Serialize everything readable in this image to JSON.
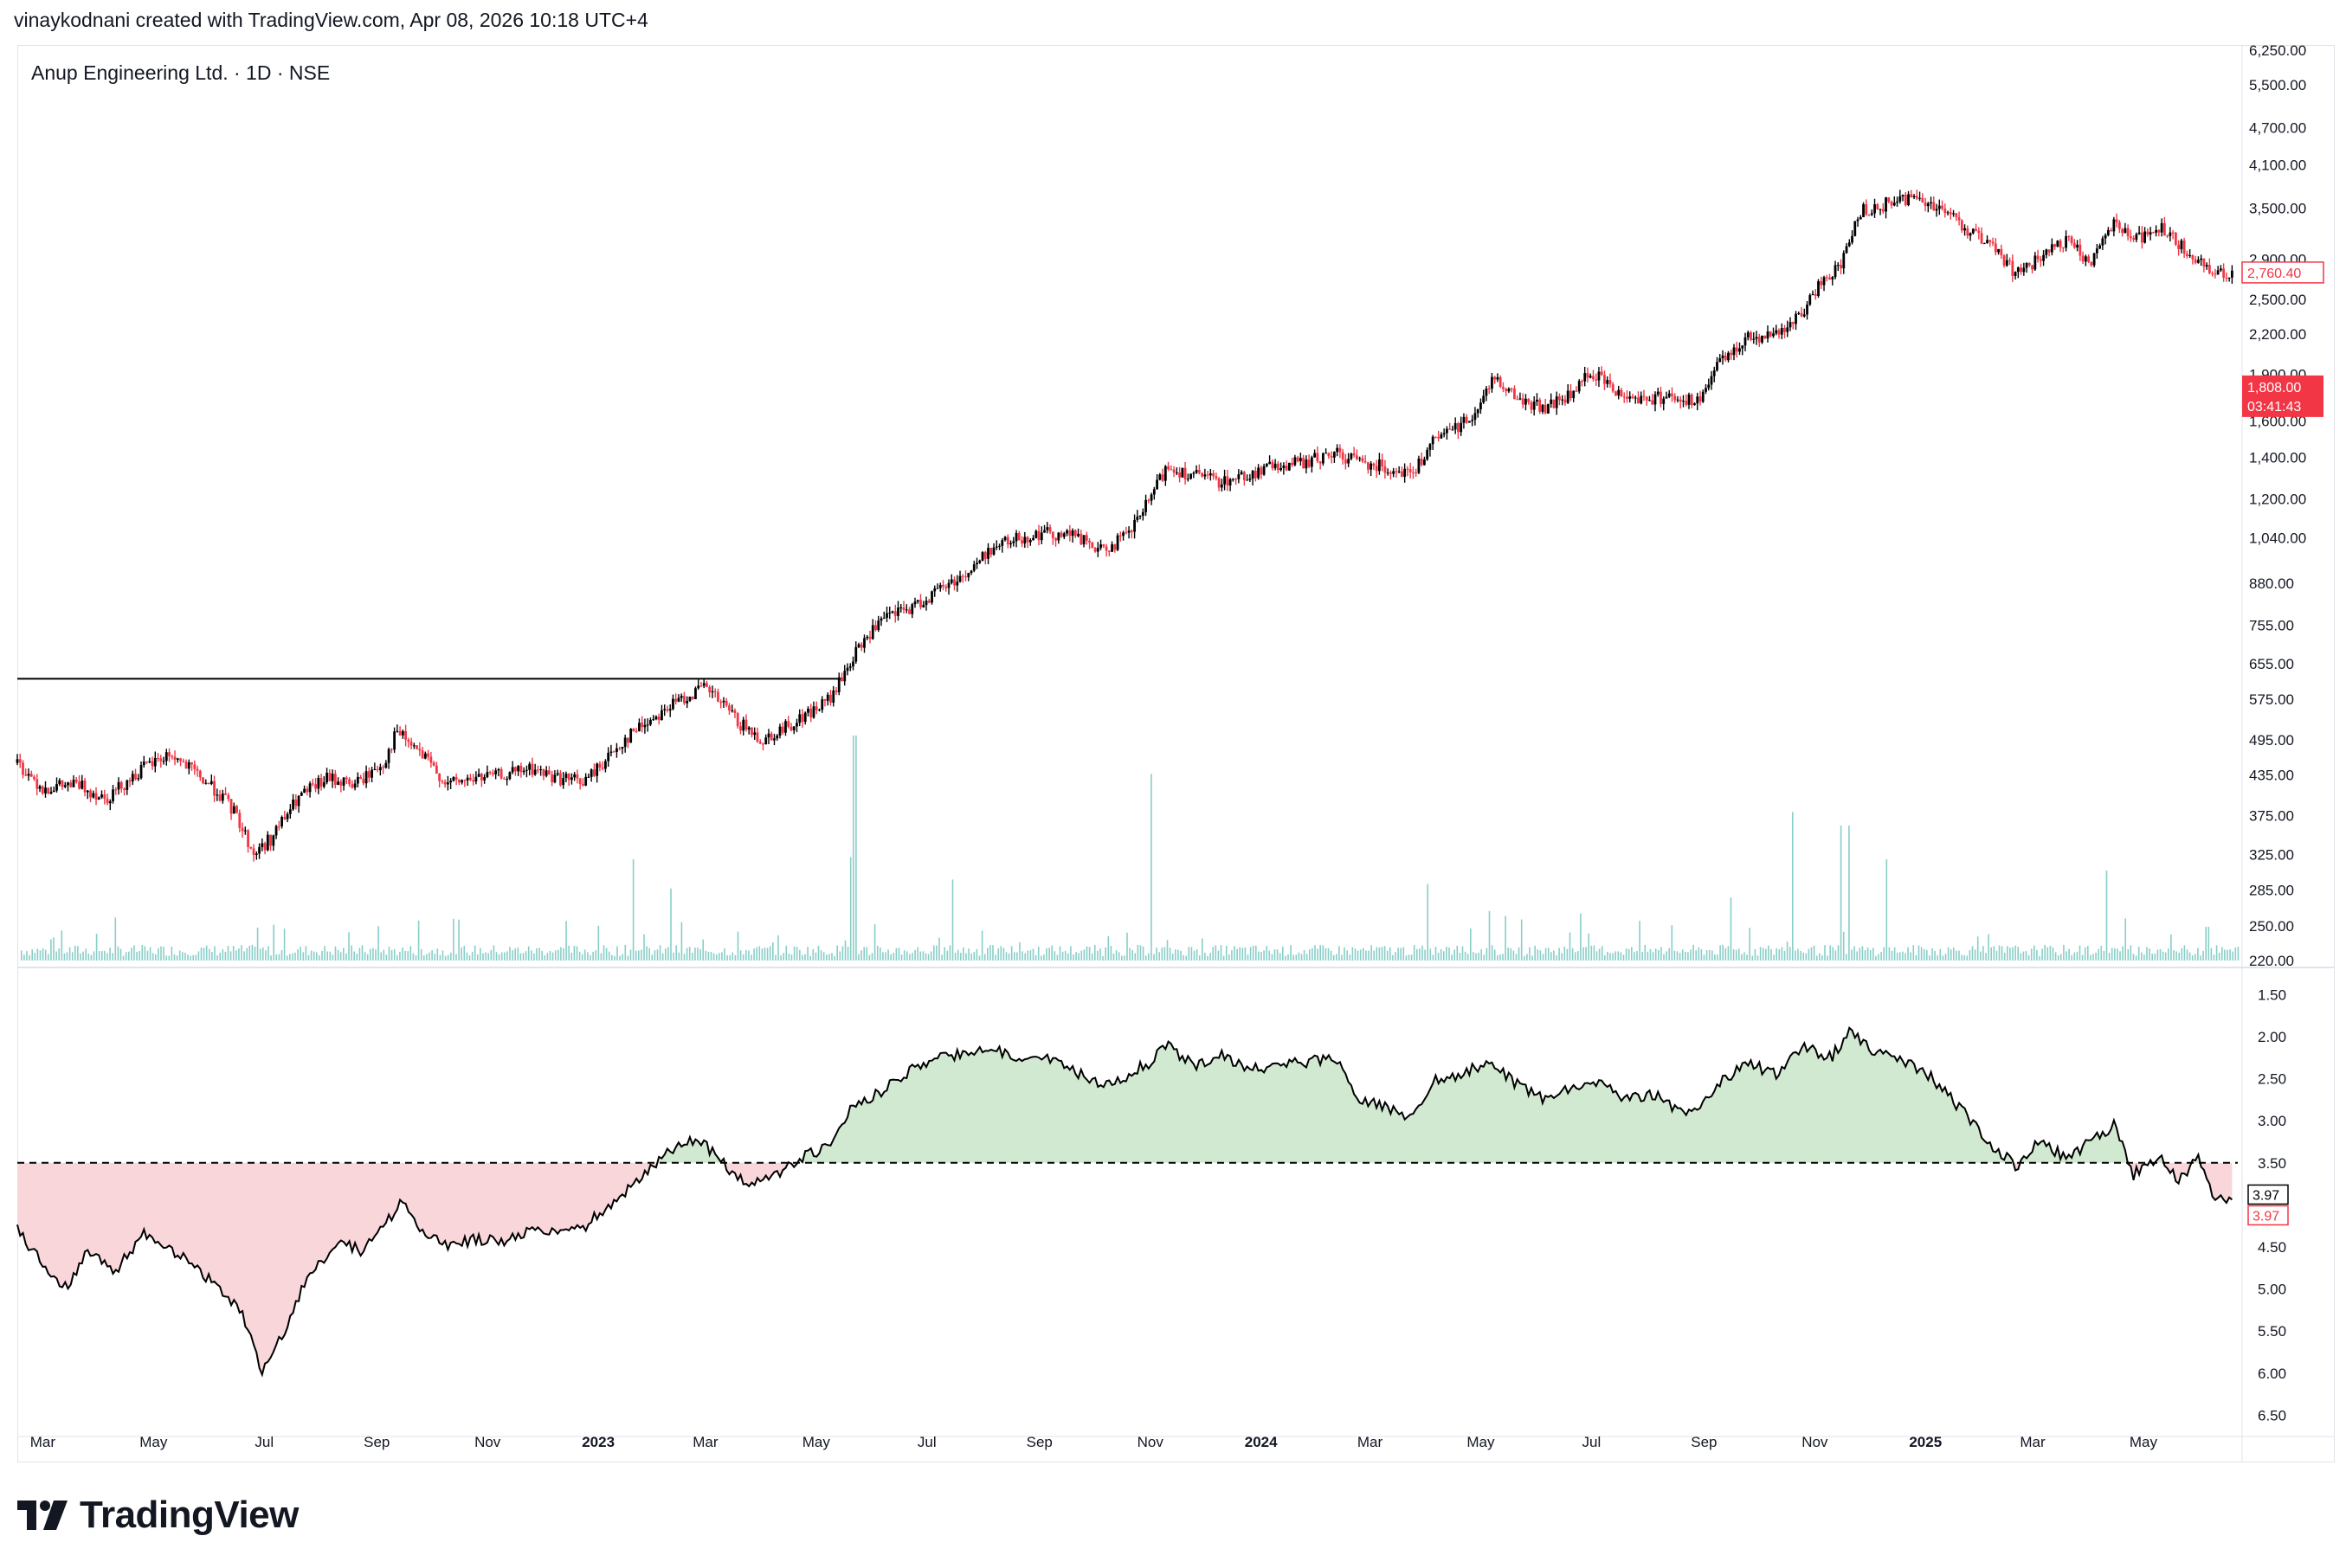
{
  "header": {
    "text": "vinaykodnani created with TradingView.com, Apr 08, 2026 10:18 UTC+4"
  },
  "brand": {
    "name": "TradingView",
    "icon": "tradingview-logo-icon"
  },
  "chart_data": [
    {
      "type": "candlestick",
      "title": "Anup Engineering Ltd. · 1D · NSE",
      "scale": "log",
      "ylim": [
        220,
        6250
      ],
      "y_ticks": [
        "6,250.00",
        "5,500.00",
        "4,700.00",
        "4,100.00",
        "3,500.00",
        "2,900.00",
        "2,500.00",
        "2,200.00",
        "1,900.00",
        "1,600.00",
        "1,400.00",
        "1,200.00",
        "1,040.00",
        "880.00",
        "755.00",
        "655.00",
        "575.00",
        "495.00",
        "435.00",
        "375.00",
        "325.00",
        "285.00",
        "250.00",
        "220.00"
      ],
      "last_price": "2,760.40",
      "secondary_price": "1,808.00",
      "countdown": "03:41:43",
      "horizontal_line": 620,
      "colors": {
        "up": "#000000",
        "down": "#f23645",
        "volume": "#26a69a"
      },
      "price_path": [
        [
          "2022-02-15",
          455
        ],
        [
          "2022-03-01",
          415
        ],
        [
          "2022-03-20",
          420
        ],
        [
          "2022-04-05",
          400
        ],
        [
          "2022-04-25",
          445
        ],
        [
          "2022-05-10",
          470
        ],
        [
          "2022-05-25",
          435
        ],
        [
          "2022-06-05",
          410
        ],
        [
          "2022-06-15",
          378
        ],
        [
          "2022-06-25",
          325
        ],
        [
          "2022-07-05",
          345
        ],
        [
          "2022-07-20",
          400
        ],
        [
          "2022-08-05",
          430
        ],
        [
          "2022-08-20",
          420
        ],
        [
          "2022-09-05",
          455
        ],
        [
          "2022-09-12",
          510
        ],
        [
          "2022-09-25",
          470
        ],
        [
          "2022-10-10",
          420
        ],
        [
          "2022-10-25",
          430
        ],
        [
          "2022-11-10",
          435
        ],
        [
          "2022-11-25",
          445
        ],
        [
          "2022-12-10",
          430
        ],
        [
          "2022-12-25",
          425
        ],
        [
          "2023-01-05",
          460
        ],
        [
          "2023-01-20",
          510
        ],
        [
          "2023-02-05",
          550
        ],
        [
          "2023-02-20",
          585
        ],
        [
          "2023-03-01",
          600
        ],
        [
          "2023-03-10",
          565
        ],
        [
          "2023-03-20",
          525
        ],
        [
          "2023-04-01",
          495
        ],
        [
          "2023-04-15",
          520
        ],
        [
          "2023-05-01",
          555
        ],
        [
          "2023-05-10",
          580
        ],
        [
          "2023-05-20",
          660
        ],
        [
          "2023-05-30",
          730
        ],
        [
          "2023-06-10",
          780
        ],
        [
          "2023-06-25",
          810
        ],
        [
          "2023-07-10",
          870
        ],
        [
          "2023-07-25",
          920
        ],
        [
          "2023-08-05",
          1000
        ],
        [
          "2023-08-20",
          1040
        ],
        [
          "2023-09-05",
          1060
        ],
        [
          "2023-09-20",
          1050
        ],
        [
          "2023-10-05",
          990
        ],
        [
          "2023-10-20",
          1050
        ],
        [
          "2023-11-01",
          1200
        ],
        [
          "2023-11-10",
          1350
        ],
        [
          "2023-11-25",
          1310
        ],
        [
          "2023-12-10",
          1280
        ],
        [
          "2023-12-25",
          1310
        ],
        [
          "2024-01-10",
          1360
        ],
        [
          "2024-01-25",
          1370
        ],
        [
          "2024-02-10",
          1420
        ],
        [
          "2024-02-25",
          1380
        ],
        [
          "2024-03-10",
          1350
        ],
        [
          "2024-03-25",
          1320
        ],
        [
          "2024-04-05",
          1480
        ],
        [
          "2024-04-20",
          1580
        ],
        [
          "2024-05-01",
          1690
        ],
        [
          "2024-05-08",
          1900
        ],
        [
          "2024-05-20",
          1740
        ],
        [
          "2024-06-05",
          1680
        ],
        [
          "2024-06-20",
          1760
        ],
        [
          "2024-07-01",
          1920
        ],
        [
          "2024-07-15",
          1780
        ],
        [
          "2024-08-01",
          1730
        ],
        [
          "2024-08-15",
          1760
        ],
        [
          "2024-08-28",
          1700
        ],
        [
          "2024-09-10",
          1980
        ],
        [
          "2024-09-25",
          2180
        ],
        [
          "2024-10-10",
          2200
        ],
        [
          "2024-10-25",
          2350
        ],
        [
          "2024-11-05",
          2700
        ],
        [
          "2024-11-15",
          2800
        ],
        [
          "2024-11-25",
          3450
        ],
        [
          "2024-12-10",
          3550
        ],
        [
          "2024-12-25",
          3650
        ],
        [
          "2025-01-10",
          3500
        ],
        [
          "2025-01-20",
          3300
        ],
        [
          "2025-02-05",
          3050
        ],
        [
          "2025-02-20",
          2750
        ],
        [
          "2025-03-05",
          2900
        ],
        [
          "2025-03-20",
          3100
        ],
        [
          "2025-04-01",
          2850
        ],
        [
          "2025-04-15",
          3350
        ],
        [
          "2025-04-25",
          3100
        ],
        [
          "2025-05-10",
          3250
        ],
        [
          "2025-05-25",
          2980
        ],
        [
          "2025-06-05",
          2800
        ],
        [
          "2025-06-20",
          2760
        ]
      ],
      "volume_spikes": [
        [
          "2023-01-20",
          0.45
        ],
        [
          "2023-02-10",
          0.32
        ],
        [
          "2023-05-22",
          1.0
        ],
        [
          "2023-05-20",
          0.46
        ],
        [
          "2023-07-15",
          0.36
        ],
        [
          "2023-11-01",
          0.83
        ],
        [
          "2024-04-01",
          0.34
        ],
        [
          "2024-05-05",
          0.22
        ],
        [
          "2024-06-25",
          0.21
        ],
        [
          "2024-09-15",
          0.28
        ],
        [
          "2024-10-20",
          0.66
        ],
        [
          "2024-11-15",
          0.6
        ],
        [
          "2024-11-20",
          0.6
        ],
        [
          "2024-12-10",
          0.45
        ],
        [
          "2025-04-10",
          0.4
        ],
        [
          "2025-06-05",
          0.15
        ]
      ]
    },
    {
      "type": "line",
      "scale": "inverted",
      "ylim": [
        1.25,
        6.65
      ],
      "y_ticks": [
        "1.50",
        "2.00",
        "2.50",
        "3.00",
        "3.50",
        "4.50",
        "5.00",
        "5.50",
        "6.00",
        "6.50"
      ],
      "reference": 3.5,
      "last_values": [
        "3.97",
        "3.97"
      ],
      "colors": {
        "above": "#d1e9d0",
        "below": "#f8d6da",
        "line": "#000000"
      },
      "path": [
        [
          "2022-02-15",
          4.3
        ],
        [
          "2022-03-01",
          4.7
        ],
        [
          "2022-03-15",
          5.0
        ],
        [
          "2022-03-25",
          4.55
        ],
        [
          "2022-04-10",
          4.8
        ],
        [
          "2022-04-25",
          4.35
        ],
        [
          "2022-05-15",
          4.6
        ],
        [
          "2022-06-05",
          4.95
        ],
        [
          "2022-06-20",
          5.35
        ],
        [
          "2022-06-30",
          6.0
        ],
        [
          "2022-07-10",
          5.6
        ],
        [
          "2022-07-25",
          4.85
        ],
        [
          "2022-08-10",
          4.45
        ],
        [
          "2022-08-25",
          4.55
        ],
        [
          "2022-09-05",
          4.25
        ],
        [
          "2022-09-15",
          3.95
        ],
        [
          "2022-09-25",
          4.3
        ],
        [
          "2022-10-10",
          4.5
        ],
        [
          "2022-10-25",
          4.4
        ],
        [
          "2022-11-10",
          4.45
        ],
        [
          "2022-11-25",
          4.3
        ],
        [
          "2022-12-10",
          4.35
        ],
        [
          "2022-12-25",
          4.25
        ],
        [
          "2023-01-10",
          3.95
        ],
        [
          "2023-01-25",
          3.65
        ],
        [
          "2023-02-10",
          3.35
        ],
        [
          "2023-02-25",
          3.2
        ],
        [
          "2023-03-10",
          3.5
        ],
        [
          "2023-03-25",
          3.75
        ],
        [
          "2023-04-10",
          3.65
        ],
        [
          "2023-04-25",
          3.4
        ],
        [
          "2023-05-10",
          3.3
        ],
        [
          "2023-05-20",
          2.85
        ],
        [
          "2023-05-30",
          2.75
        ],
        [
          "2023-06-15",
          2.5
        ],
        [
          "2023-07-01",
          2.3
        ],
        [
          "2023-07-20",
          2.2
        ],
        [
          "2023-08-05",
          2.1
        ],
        [
          "2023-08-20",
          2.3
        ],
        [
          "2023-09-05",
          2.25
        ],
        [
          "2023-09-20",
          2.4
        ],
        [
          "2023-10-05",
          2.6
        ],
        [
          "2023-10-20",
          2.45
        ],
        [
          "2023-11-01",
          2.3
        ],
        [
          "2023-11-10",
          2.1
        ],
        [
          "2023-11-25",
          2.35
        ],
        [
          "2023-12-10",
          2.2
        ],
        [
          "2023-12-25",
          2.4
        ],
        [
          "2024-01-10",
          2.35
        ],
        [
          "2024-01-25",
          2.3
        ],
        [
          "2024-02-10",
          2.25
        ],
        [
          "2024-02-25",
          2.75
        ],
        [
          "2024-03-10",
          2.85
        ],
        [
          "2024-03-25",
          2.95
        ],
        [
          "2024-04-05",
          2.5
        ],
        [
          "2024-04-20",
          2.45
        ],
        [
          "2024-05-05",
          2.3
        ],
        [
          "2024-05-20",
          2.55
        ],
        [
          "2024-06-05",
          2.75
        ],
        [
          "2024-06-20",
          2.6
        ],
        [
          "2024-07-05",
          2.55
        ],
        [
          "2024-07-20",
          2.75
        ],
        [
          "2024-08-05",
          2.7
        ],
        [
          "2024-08-25",
          2.95
        ],
        [
          "2024-09-10",
          2.55
        ],
        [
          "2024-09-25",
          2.3
        ],
        [
          "2024-10-10",
          2.45
        ],
        [
          "2024-10-25",
          2.1
        ],
        [
          "2024-11-10",
          2.25
        ],
        [
          "2024-11-20",
          1.95
        ],
        [
          "2024-12-05",
          2.2
        ],
        [
          "2024-12-20",
          2.3
        ],
        [
          "2025-01-05",
          2.5
        ],
        [
          "2025-01-20",
          2.85
        ],
        [
          "2025-02-05",
          3.25
        ],
        [
          "2025-02-20",
          3.55
        ],
        [
          "2025-03-05",
          3.25
        ],
        [
          "2025-03-20",
          3.45
        ],
        [
          "2025-04-05",
          3.2
        ],
        [
          "2025-04-15",
          3.05
        ],
        [
          "2025-04-25",
          3.65
        ],
        [
          "2025-05-10",
          3.4
        ],
        [
          "2025-05-20",
          3.7
        ],
        [
          "2025-06-01",
          3.45
        ],
        [
          "2025-06-10",
          3.95
        ],
        [
          "2025-06-20",
          3.97
        ]
      ]
    }
  ],
  "x_axis": {
    "ticks": [
      {
        "label": "Mar",
        "date": "2022-03-01",
        "bold": false
      },
      {
        "label": "May",
        "date": "2022-05-01",
        "bold": false
      },
      {
        "label": "Jul",
        "date": "2022-07-01",
        "bold": false
      },
      {
        "label": "Sep",
        "date": "2022-09-01",
        "bold": false
      },
      {
        "label": "Nov",
        "date": "2022-11-01",
        "bold": false
      },
      {
        "label": "2023",
        "date": "2023-01-01",
        "bold": true
      },
      {
        "label": "Mar",
        "date": "2023-03-01",
        "bold": false
      },
      {
        "label": "May",
        "date": "2023-05-01",
        "bold": false
      },
      {
        "label": "Jul",
        "date": "2023-07-01",
        "bold": false
      },
      {
        "label": "Sep",
        "date": "2023-09-01",
        "bold": false
      },
      {
        "label": "Nov",
        "date": "2023-11-01",
        "bold": false
      },
      {
        "label": "2024",
        "date": "2024-01-01",
        "bold": true
      },
      {
        "label": "Mar",
        "date": "2024-03-01",
        "bold": false
      },
      {
        "label": "May",
        "date": "2024-05-01",
        "bold": false
      },
      {
        "label": "Jul",
        "date": "2024-07-01",
        "bold": false
      },
      {
        "label": "Sep",
        "date": "2024-09-01",
        "bold": false
      },
      {
        "label": "Nov",
        "date": "2024-11-01",
        "bold": false
      },
      {
        "label": "2025",
        "date": "2025-01-01",
        "bold": true
      },
      {
        "label": "Mar",
        "date": "2025-03-01",
        "bold": false
      },
      {
        "label": "May",
        "date": "2025-05-01",
        "bold": false
      }
    ],
    "range": [
      "2022-02-15",
      "2025-06-22"
    ]
  }
}
